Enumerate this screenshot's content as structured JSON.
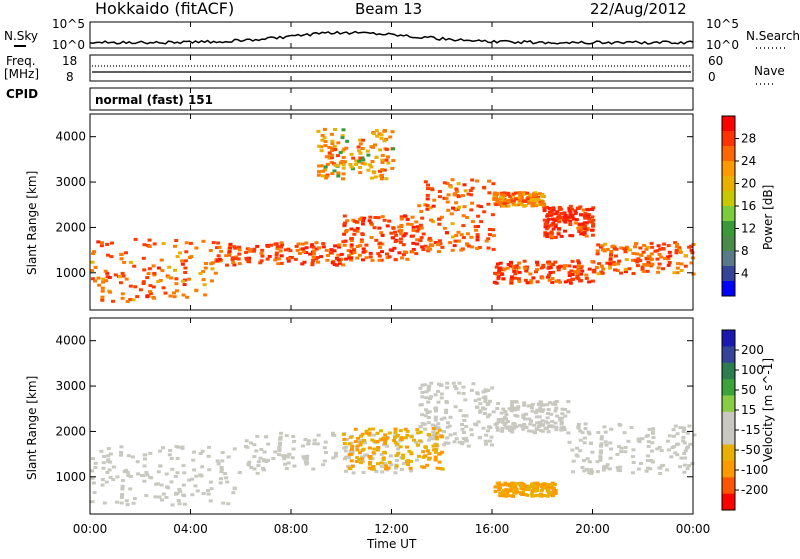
{
  "header": {
    "station": "Hokkaido (fitACF)",
    "beam": "Beam 13",
    "date": "22/Aug/2012"
  },
  "noise_panel": {
    "left_label": "N.Sky",
    "right_label": "N.Search",
    "tick_top": "10^5",
    "tick_bottom": "10^0"
  },
  "freq_panel": {
    "left_label_line1": "Freq.",
    "left_label_line2": "[MHz]",
    "right_label": "Nave",
    "left_tick_top": "18",
    "left_tick_bottom": "8",
    "right_tick_top": "60",
    "right_tick_bottom": "0"
  },
  "cpid_panel": {
    "label": "CPID",
    "value": "normal (fast) 151"
  },
  "power_panel": {
    "ylabel": "Slant Range [km]",
    "yticks": [
      "4000",
      "3000",
      "2000",
      "1000"
    ],
    "colorbar_label": "Power [dB]",
    "colorbar_ticks": [
      "28",
      "24",
      "20",
      "16",
      "12",
      "8",
      "4"
    ],
    "colorbar_colors": [
      "#ff0000",
      "#ff3300",
      "#ff6600",
      "#ff9900",
      "#e8b000",
      "#c8c800",
      "#7ccd3c",
      "#3a9a3a",
      "#4a8a4a",
      "#5a7a8a",
      "#334499",
      "#0000ff"
    ]
  },
  "velocity_panel": {
    "ylabel": "Slant Range [km]",
    "yticks": [
      "4000",
      "3000",
      "2000",
      "1000"
    ],
    "colorbar_label": "Velocity [m s^-1]",
    "colorbar_ticks": [
      "200",
      "100",
      "50",
      "15",
      "-15",
      "-50",
      "-100",
      "-200"
    ],
    "colorbar_colors": [
      "#1a1ab0",
      "#334499",
      "#2e7d4f",
      "#3aa33a",
      "#88cc44",
      "#c8c8c0",
      "#c8c8c0",
      "#e8b000",
      "#ff9900",
      "#ff5500",
      "#ff0000"
    ]
  },
  "xaxis": {
    "label": "Time UT",
    "ticks": [
      "00:00",
      "04:00",
      "08:00",
      "12:00",
      "16:00",
      "20:00",
      "00:00"
    ]
  },
  "chart_data": {
    "type": "heatmap",
    "title": "Hokkaido (fitACF) Beam 13 22/Aug/2012",
    "xlabel": "Time UT",
    "ylabel": "Slant Range [km]",
    "xlim": [
      0,
      24
    ],
    "ylim": [
      180,
      4500
    ],
    "power_bands": [
      {
        "t0": 0,
        "t1": 5,
        "r_low": 400,
        "r_high": 1800,
        "dB": 22
      },
      {
        "t0": 5,
        "t1": 10,
        "r_low": 1200,
        "r_high": 1700,
        "dB": 24
      },
      {
        "t0": 10,
        "t1": 13,
        "r_low": 1300,
        "r_high": 2300,
        "dB": 24
      },
      {
        "t0": 13,
        "t1": 16,
        "r_low": 1500,
        "r_high": 3100,
        "dB": 22
      },
      {
        "t0": 16,
        "t1": 18,
        "r_low": 2500,
        "r_high": 2800,
        "dB": 20
      },
      {
        "t0": 18,
        "t1": 20,
        "r_low": 1800,
        "r_high": 2500,
        "dB": 26
      },
      {
        "t0": 20,
        "t1": 24,
        "r_low": 1000,
        "r_high": 1700,
        "dB": 22
      },
      {
        "t0": 16,
        "t1": 20,
        "r_low": 800,
        "r_high": 1300,
        "dB": 24
      },
      {
        "t0": 9,
        "t1": 12,
        "r_low": 3100,
        "r_high": 4200,
        "dB": 18
      }
    ],
    "velocity_bands": [
      {
        "t0": 0,
        "t1": 6,
        "r_low": 400,
        "r_high": 1700,
        "v": 0
      },
      {
        "t0": 6,
        "t1": 13,
        "r_low": 1100,
        "r_high": 2000,
        "v": 0
      },
      {
        "t0": 13,
        "t1": 16,
        "r_low": 1700,
        "r_high": 3100,
        "v": 0
      },
      {
        "t0": 16,
        "t1": 19,
        "r_low": 2000,
        "r_high": 2700,
        "v": 0
      },
      {
        "t0": 19,
        "t1": 24,
        "r_low": 1100,
        "r_high": 2200,
        "v": 0
      },
      {
        "t0": 10,
        "t1": 14,
        "r_low": 1200,
        "r_high": 2100,
        "v": -50
      },
      {
        "t0": 16,
        "t1": 18.5,
        "r_low": 600,
        "r_high": 900,
        "v": -50
      }
    ]
  }
}
